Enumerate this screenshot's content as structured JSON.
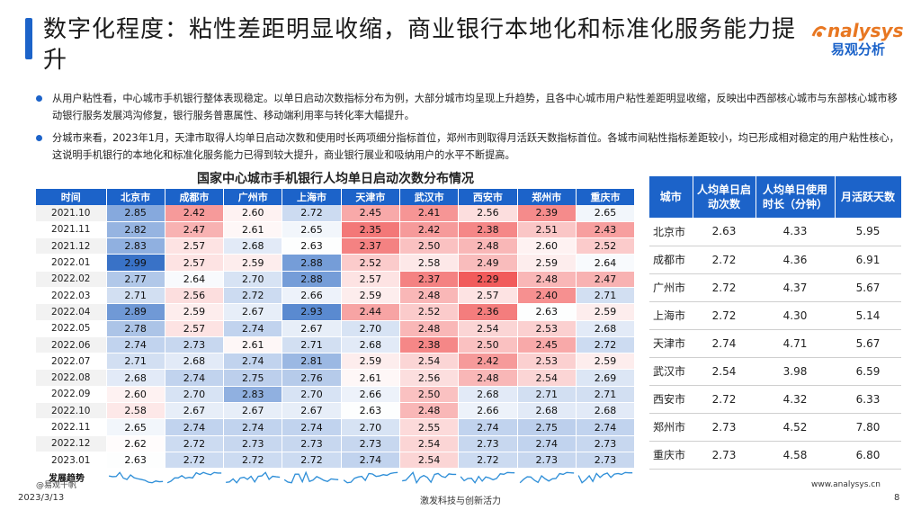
{
  "header": {
    "title": "数字化程度：粘性差距明显收缩，商业银行本地化和标准化服务能力提升",
    "logo_en": "nalysys",
    "logo_cn": "易观分析"
  },
  "bullets": [
    "从用户粘性看，中心城市手机银行整体表现稳定。以单日启动次数指标分布为例，大部分城市均呈现上升趋势，且各中心城市用户粘性差距明显收缩，反映出中西部核心城市与东部核心城市移动银行服务发展鸿沟修复，银行服务普惠属性、移动端利用率与转化率大幅提升。",
    "分城市来看，2023年1月，天津市取得人均单日启动次数和使用时长两项细分指标首位，郑州市则取得月活跃天数指标首位。各城市间粘性指标差距较小，均已形成相对稳定的用户粘性核心，这说明手机银行的本地化和标准化服务能力已得到较大提升，商业银行展业和吸纳用户的水平不断提高。"
  ],
  "chart_data": {
    "type": "heatmap",
    "title": "国家中心城市手机银行人均单日启动次数分布情况",
    "row_header": "时间",
    "trend_label": "发展趋势",
    "columns": [
      "北京市",
      "成都市",
      "广州市",
      "上海市",
      "天津市",
      "武汉市",
      "西安市",
      "郑州市",
      "重庆市"
    ],
    "rows": [
      "2021.10",
      "2021.11",
      "2021.12",
      "2022.01",
      "2022.02",
      "2022.03",
      "2022.04",
      "2022.05",
      "2022.06",
      "2022.07",
      "2022.08",
      "2022.09",
      "2022.10",
      "2022.11",
      "2022.12",
      "2023.01"
    ],
    "values": [
      [
        "2.85",
        "2.42",
        "2.60",
        "2.72",
        "2.45",
        "2.41",
        "2.56",
        "2.39",
        "2.65"
      ],
      [
        "2.82",
        "2.47",
        "2.61",
        "2.65",
        "2.35",
        "2.42",
        "2.38",
        "2.51",
        "2.43"
      ],
      [
        "2.83",
        "2.57",
        "2.68",
        "2.63",
        "2.37",
        "2.50",
        "2.48",
        "2.60",
        "2.52"
      ],
      [
        "2.99",
        "2.57",
        "2.59",
        "2.88",
        "2.52",
        "2.58",
        "2.49",
        "2.59",
        "2.64"
      ],
      [
        "2.77",
        "2.64",
        "2.70",
        "2.88",
        "2.57",
        "2.37",
        "2.29",
        "2.48",
        "2.47"
      ],
      [
        "2.71",
        "2.56",
        "2.72",
        "2.66",
        "2.59",
        "2.48",
        "2.57",
        "2.40",
        "2.71"
      ],
      [
        "2.89",
        "2.59",
        "2.67",
        "2.93",
        "2.44",
        "2.52",
        "2.36",
        "2.63",
        "2.59"
      ],
      [
        "2.78",
        "2.57",
        "2.74",
        "2.67",
        "2.70",
        "2.48",
        "2.54",
        "2.53",
        "2.68"
      ],
      [
        "2.74",
        "2.73",
        "2.61",
        "2.71",
        "2.68",
        "2.38",
        "2.50",
        "2.45",
        "2.72"
      ],
      [
        "2.71",
        "2.68",
        "2.74",
        "2.81",
        "2.59",
        "2.54",
        "2.42",
        "2.53",
        "2.59"
      ],
      [
        "2.68",
        "2.74",
        "2.75",
        "2.76",
        "2.61",
        "2.56",
        "2.48",
        "2.54",
        "2.69"
      ],
      [
        "2.60",
        "2.70",
        "2.83",
        "2.70",
        "2.66",
        "2.50",
        "2.68",
        "2.71",
        "2.71"
      ],
      [
        "2.58",
        "2.67",
        "2.67",
        "2.67",
        "2.63",
        "2.48",
        "2.66",
        "2.68",
        "2.68"
      ],
      [
        "2.65",
        "2.74",
        "2.74",
        "2.74",
        "2.70",
        "2.55",
        "2.74",
        "2.75",
        "2.74"
      ],
      [
        "2.62",
        "2.72",
        "2.73",
        "2.73",
        "2.73",
        "2.54",
        "2.73",
        "2.74",
        "2.73"
      ],
      [
        "2.63",
        "2.72",
        "2.72",
        "2.72",
        "2.74",
        "2.54",
        "2.72",
        "2.73",
        "2.73"
      ]
    ],
    "color_low": "#ef4444",
    "color_mid": "#ffffff",
    "color_high": "#2f6bc4"
  },
  "side_table": {
    "headers": [
      "城市",
      "人均单日启动次数",
      "人均单日使用时长（分钟）",
      "月活跃天数"
    ],
    "rows": [
      [
        "北京市",
        "2.63",
        "4.33",
        "5.95"
      ],
      [
        "成都市",
        "2.72",
        "4.36",
        "6.91"
      ],
      [
        "广州市",
        "2.72",
        "4.37",
        "5.67"
      ],
      [
        "上海市",
        "2.72",
        "4.30",
        "5.14"
      ],
      [
        "天津市",
        "2.74",
        "4.71",
        "5.67"
      ],
      [
        "武汉市",
        "2.54",
        "3.98",
        "6.59"
      ],
      [
        "西安市",
        "2.72",
        "4.32",
        "6.33"
      ],
      [
        "郑州市",
        "2.73",
        "4.52",
        "7.80"
      ],
      [
        "重庆市",
        "2.73",
        "4.58",
        "6.80"
      ]
    ]
  },
  "footer": {
    "source": "@易观千帆",
    "date": "2023/3/13",
    "slogan": "激发科技与创新活力",
    "site": "www.analysys.cn",
    "page": "8"
  },
  "colors": {
    "accent": "#1c63c9",
    "brand_orange": "#e87722"
  }
}
